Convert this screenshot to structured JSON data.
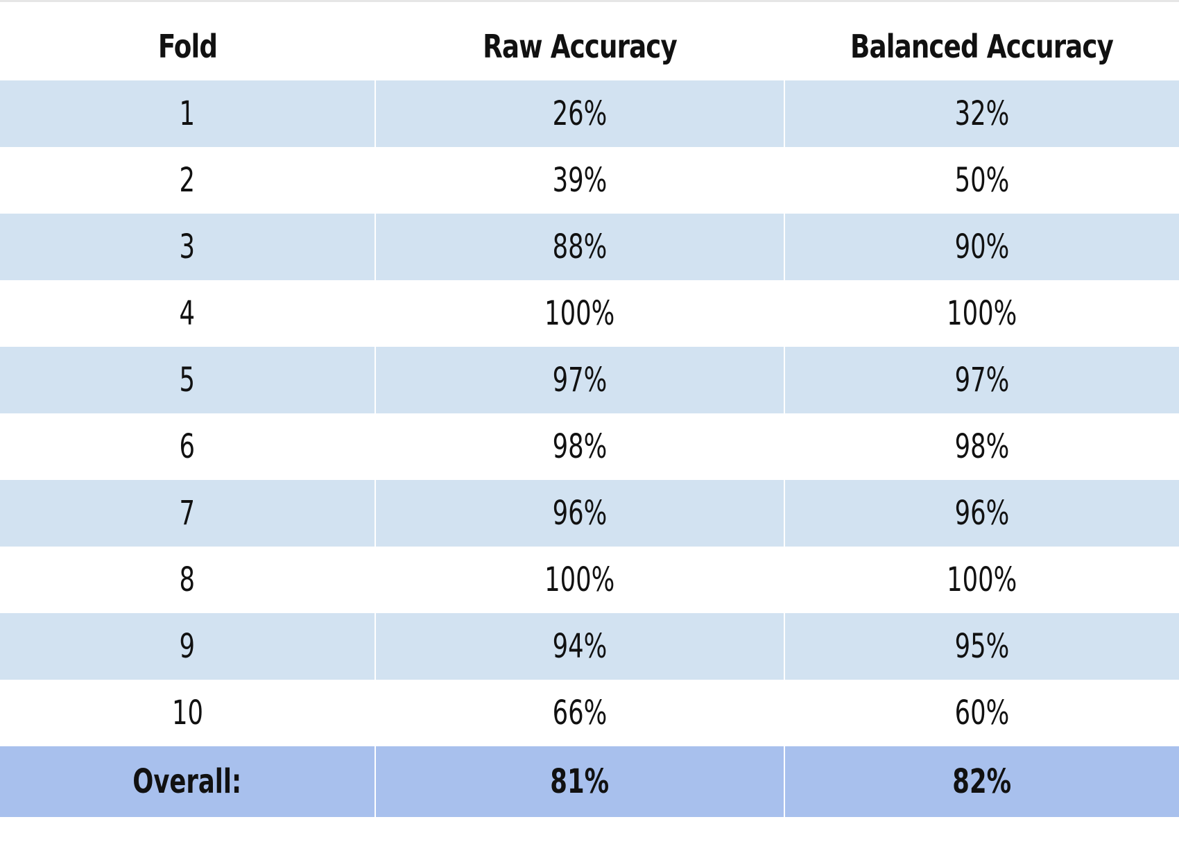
{
  "table": {
    "headers": [
      "Fold",
      "Raw Accuracy",
      "Balanced Accuracy"
    ],
    "rows": [
      [
        "1",
        "26%",
        "32%"
      ],
      [
        "2",
        "39%",
        "50%"
      ],
      [
        "3",
        "88%",
        "90%"
      ],
      [
        "4",
        "100%",
        "100%"
      ],
      [
        "5",
        "97%",
        "97%"
      ],
      [
        "6",
        "98%",
        "98%"
      ],
      [
        "7",
        "96%",
        "96%"
      ],
      [
        "8",
        "100%",
        "100%"
      ],
      [
        "9",
        "94%",
        "95%"
      ],
      [
        "10",
        "66%",
        "60%"
      ]
    ],
    "overall": [
      "Overall:",
      "81%",
      "82%"
    ]
  },
  "colors": {
    "stripe": "#d2e2f1",
    "overall_row": "#a8c0ed",
    "background": "#ffffff"
  }
}
